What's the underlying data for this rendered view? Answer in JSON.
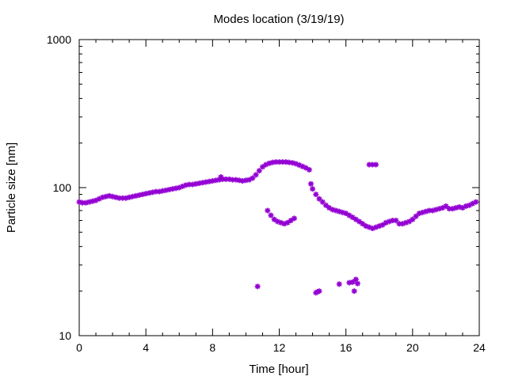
{
  "colors": {
    "series": "#9400d3",
    "axis": "#000000",
    "background": "#ffffff"
  },
  "chart_data": {
    "type": "scatter",
    "title": "Modes location (3/19/19)",
    "xlabel": "Time [hour]",
    "ylabel": "Particle size [nm]",
    "xlim": [
      0,
      24
    ],
    "ylim": [
      10,
      1000
    ],
    "y_scale": "log",
    "x_ticks": [
      "0",
      "4",
      "8",
      "12",
      "16",
      "20",
      "24"
    ],
    "y_ticks": [
      "10",
      "100",
      "1000"
    ],
    "grid": false,
    "legend": "none",
    "series": [
      {
        "name": "",
        "marker": "star",
        "color": "#9400d3",
        "points": [
          [
            0.0,
            80
          ],
          [
            0.2,
            79
          ],
          [
            0.4,
            79
          ],
          [
            0.6,
            80
          ],
          [
            0.8,
            81
          ],
          [
            1.0,
            82
          ],
          [
            1.2,
            84
          ],
          [
            1.4,
            86
          ],
          [
            1.6,
            87
          ],
          [
            1.8,
            88
          ],
          [
            2.0,
            87
          ],
          [
            2.2,
            86
          ],
          [
            2.4,
            85
          ],
          [
            2.6,
            85
          ],
          [
            2.8,
            85
          ],
          [
            3.0,
            86
          ],
          [
            3.2,
            87
          ],
          [
            3.4,
            88
          ],
          [
            3.6,
            89
          ],
          [
            3.8,
            90
          ],
          [
            4.0,
            91
          ],
          [
            4.2,
            92
          ],
          [
            4.4,
            93
          ],
          [
            4.6,
            94
          ],
          [
            4.8,
            94
          ],
          [
            5.0,
            95
          ],
          [
            5.2,
            96
          ],
          [
            5.4,
            97
          ],
          [
            5.6,
            98
          ],
          [
            5.8,
            99
          ],
          [
            6.0,
            100
          ],
          [
            6.2,
            102
          ],
          [
            6.4,
            104
          ],
          [
            6.6,
            105
          ],
          [
            6.8,
            105
          ],
          [
            7.0,
            106
          ],
          [
            7.2,
            107
          ],
          [
            7.4,
            108
          ],
          [
            7.6,
            109
          ],
          [
            7.8,
            110
          ],
          [
            8.0,
            111
          ],
          [
            8.2,
            112
          ],
          [
            8.4,
            113
          ],
          [
            8.5,
            118
          ],
          [
            8.6,
            114
          ],
          [
            8.8,
            114
          ],
          [
            9.0,
            114
          ],
          [
            9.2,
            113
          ],
          [
            9.4,
            113
          ],
          [
            9.6,
            112
          ],
          [
            9.8,
            111
          ],
          [
            10.0,
            112
          ],
          [
            10.2,
            113
          ],
          [
            10.4,
            116
          ],
          [
            10.6,
            122
          ],
          [
            10.8,
            130
          ],
          [
            11.0,
            138
          ],
          [
            11.2,
            143
          ],
          [
            11.4,
            146
          ],
          [
            11.6,
            148
          ],
          [
            11.8,
            149
          ],
          [
            12.0,
            149
          ],
          [
            12.2,
            149
          ],
          [
            12.4,
            149
          ],
          [
            12.6,
            148
          ],
          [
            12.8,
            147
          ],
          [
            13.0,
            145
          ],
          [
            13.2,
            142
          ],
          [
            13.4,
            139
          ],
          [
            13.6,
            136
          ],
          [
            13.8,
            132
          ],
          [
            13.9,
            106
          ],
          [
            14.0,
            98
          ],
          [
            14.2,
            90
          ],
          [
            14.4,
            84
          ],
          [
            14.6,
            80
          ],
          [
            14.8,
            76
          ],
          [
            15.0,
            73
          ],
          [
            15.2,
            71
          ],
          [
            15.4,
            70
          ],
          [
            15.6,
            69
          ],
          [
            15.8,
            68
          ],
          [
            16.0,
            67
          ],
          [
            16.2,
            65
          ],
          [
            16.4,
            63
          ],
          [
            16.6,
            61
          ],
          [
            16.8,
            59
          ],
          [
            17.0,
            57
          ],
          [
            17.2,
            55
          ],
          [
            17.4,
            54
          ],
          [
            17.6,
            53
          ],
          [
            17.8,
            54
          ],
          [
            18.0,
            55
          ],
          [
            18.2,
            56
          ],
          [
            18.4,
            58
          ],
          [
            18.6,
            59
          ],
          [
            18.8,
            60
          ],
          [
            19.0,
            60
          ],
          [
            19.2,
            57
          ],
          [
            19.4,
            57
          ],
          [
            19.6,
            58
          ],
          [
            19.8,
            59
          ],
          [
            20.0,
            61
          ],
          [
            20.2,
            64
          ],
          [
            20.4,
            67
          ],
          [
            20.6,
            68
          ],
          [
            20.8,
            69
          ],
          [
            21.0,
            70
          ],
          [
            21.2,
            70
          ],
          [
            21.4,
            71
          ],
          [
            21.6,
            72
          ],
          [
            21.8,
            73
          ],
          [
            22.0,
            75
          ],
          [
            22.2,
            72
          ],
          [
            22.4,
            72
          ],
          [
            22.6,
            73
          ],
          [
            22.8,
            74
          ],
          [
            23.0,
            73
          ],
          [
            23.2,
            75
          ],
          [
            23.4,
            76
          ],
          [
            23.6,
            78
          ],
          [
            23.8,
            80
          ],
          [
            11.3,
            70
          ],
          [
            11.5,
            65
          ],
          [
            11.7,
            61
          ],
          [
            11.9,
            59
          ],
          [
            12.1,
            58
          ],
          [
            12.3,
            57
          ],
          [
            12.5,
            58
          ],
          [
            12.7,
            60
          ],
          [
            12.9,
            62
          ],
          [
            17.4,
            143
          ],
          [
            17.6,
            143
          ],
          [
            17.8,
            143
          ],
          [
            10.7,
            21.5
          ],
          [
            14.2,
            19.5
          ],
          [
            14.3,
            19.8
          ],
          [
            14.4,
            20.0
          ],
          [
            15.6,
            22.3
          ],
          [
            16.2,
            22.8
          ],
          [
            16.4,
            23.0
          ],
          [
            16.6,
            24.0
          ],
          [
            16.5,
            20.0
          ],
          [
            16.7,
            22.5
          ]
        ]
      }
    ]
  }
}
